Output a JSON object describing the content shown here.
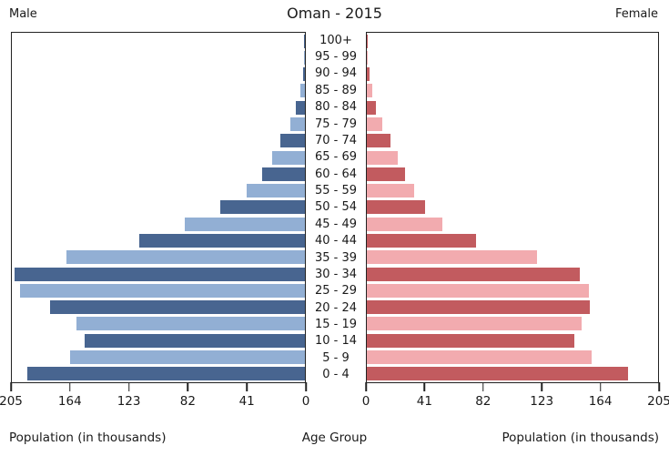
{
  "header": {
    "left": "Male",
    "title": "Oman - 2015",
    "right": "Female"
  },
  "footer": {
    "left_axis_label": "Population (in thousands)",
    "center_label": "Age Group",
    "right_axis_label": "Population (in thousands)"
  },
  "chart_data": {
    "type": "bar",
    "subtype": "population-pyramid",
    "title": "Oman - 2015",
    "categories": [
      "100+",
      "95 - 99",
      "90 - 94",
      "85 - 89",
      "80 - 84",
      "75 - 79",
      "70 - 74",
      "65 - 69",
      "60 - 64",
      "55 - 59",
      "50 - 54",
      "45 - 49",
      "40 - 44",
      "35 - 39",
      "30 - 34",
      "25 - 29",
      "20 - 24",
      "15 - 19",
      "10 - 14",
      "5 - 9",
      "0 - 4"
    ],
    "series": [
      {
        "name": "Male",
        "side": "left",
        "values": [
          0.2,
          0.5,
          1.5,
          3,
          6.5,
          10.5,
          17,
          23,
          30,
          41,
          59,
          84,
          116,
          167,
          203,
          199,
          178,
          160,
          154,
          164,
          194
        ]
      },
      {
        "name": "Female",
        "side": "right",
        "values": [
          0.2,
          0.5,
          2,
          4,
          6.5,
          11,
          16.5,
          22,
          27,
          33,
          41,
          53,
          77,
          120,
          150,
          156,
          157,
          151,
          146,
          158,
          184
        ]
      }
    ],
    "xlabel": "Population (in thousands)",
    "center_axis_label": "Age Group",
    "xlim": [
      0,
      205
    ],
    "ticks": [
      0,
      41,
      82,
      123,
      164,
      205
    ],
    "grid": false,
    "legend_position": "none",
    "colors": {
      "male_dark": "#486590",
      "male_light": "#92afd4",
      "female_dark": "#c25b5f",
      "female_light": "#f2abaf",
      "plot_border": "#222222",
      "text": "#1a1a1a"
    }
  }
}
